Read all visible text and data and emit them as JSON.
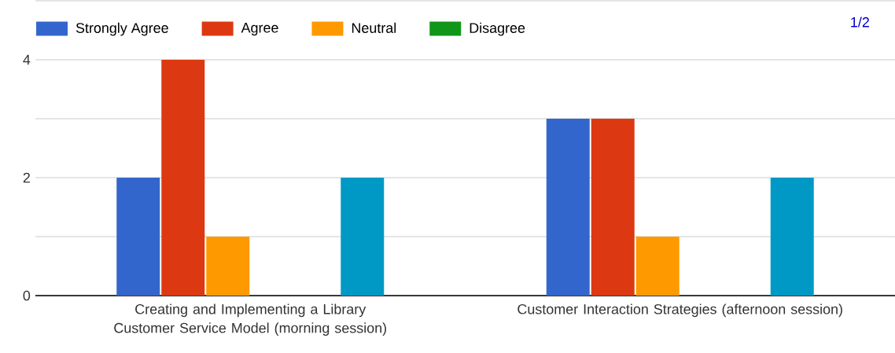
{
  "chart_data": {
    "type": "bar",
    "categories": [
      "Creating and Implementing a Library Customer Service Model (morning session)",
      "Customer Interaction Strategies (afternoon session)"
    ],
    "series": [
      {
        "name": "Strongly Agree",
        "color": "#3366cc",
        "values": [
          2,
          3
        ]
      },
      {
        "name": "Agree",
        "color": "#dc3912",
        "values": [
          4,
          3
        ]
      },
      {
        "name": "Neutral",
        "color": "#ff9900",
        "values": [
          1,
          1
        ]
      },
      {
        "name": "Disagree",
        "color": "#109618",
        "values": [
          0,
          0
        ]
      },
      {
        "color": "#990099",
        "values": [
          0,
          0
        ]
      },
      {
        "color": "#0099c6",
        "values": [
          2,
          2
        ]
      }
    ],
    "ylim": [
      0,
      5
    ],
    "yticks": [
      0,
      {
        "value": 1,
        "label": null
      },
      2,
      {
        "value": 3,
        "label": null
      },
      4
    ],
    "grid": "y",
    "legend": "top left",
    "annotations": [
      "1/2"
    ]
  }
}
